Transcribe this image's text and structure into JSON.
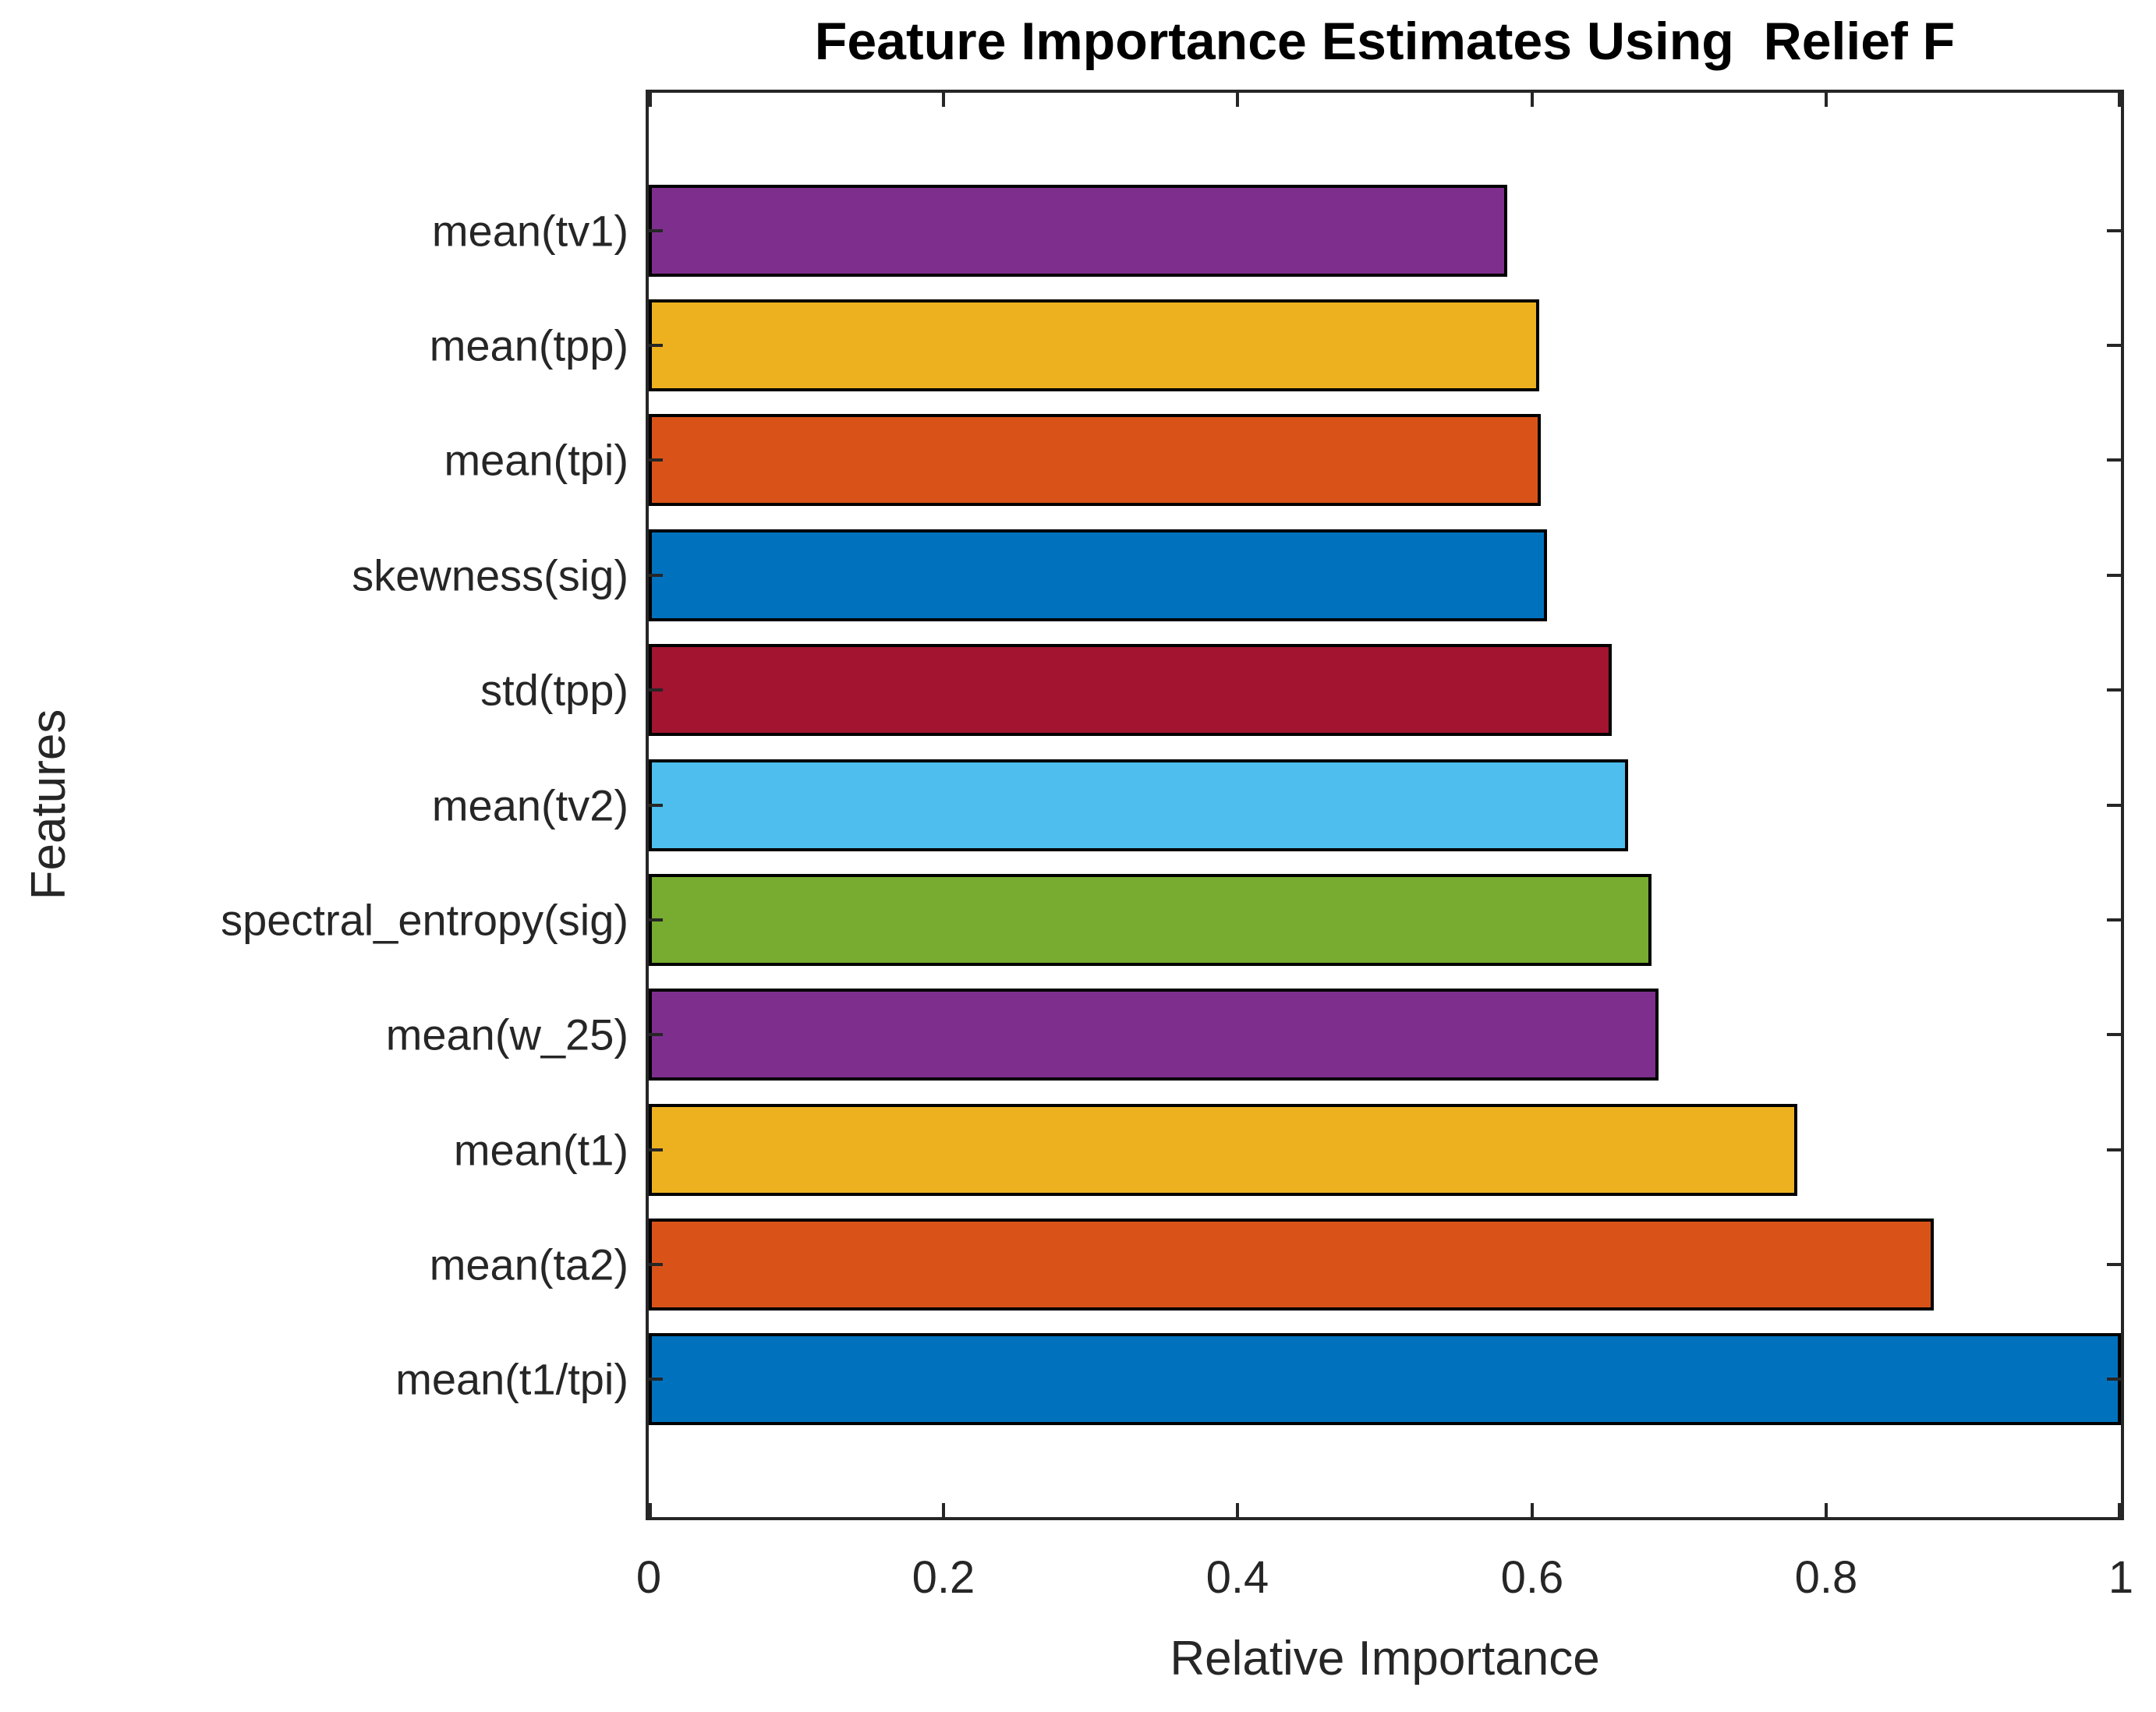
{
  "chart_data": {
    "type": "bar",
    "orientation": "horizontal",
    "title": "Feature Importance Estimates Using  Relief F",
    "xlabel": "Relative Importance",
    "ylabel": "Features",
    "xlim": [
      0,
      1
    ],
    "xtick_values": [
      0,
      0.2,
      0.4,
      0.6,
      0.8,
      1
    ],
    "xtick_labels": [
      "0",
      "0.2",
      "0.4",
      "0.6",
      "0.8",
      "1"
    ],
    "grid": false,
    "legend_position": "none",
    "categories": [
      "mean(tv1)",
      "mean(tpp)",
      "mean(tpi)",
      "skewness(sig)",
      "std(tpp)",
      "mean(tv2)",
      "spectral_entropy(sig)",
      "mean(w_25)",
      "mean(t1)",
      "mean(ta2)",
      "mean(t1/tpi)"
    ],
    "values": [
      0.583,
      0.605,
      0.606,
      0.61,
      0.654,
      0.665,
      0.681,
      0.686,
      0.78,
      0.873,
      1.0
    ],
    "bar_colors": [
      "#7E2F8E",
      "#EDB120",
      "#D95319",
      "#0072BD",
      "#A2142F",
      "#4DBEEE",
      "#77AC30",
      "#7E2F8E",
      "#EDB120",
      "#D95319",
      "#0072BD"
    ],
    "bar_edge_color": "#000000",
    "axis_color": "#262626",
    "tick_label_color": "#262626",
    "title_color": "#000000"
  }
}
